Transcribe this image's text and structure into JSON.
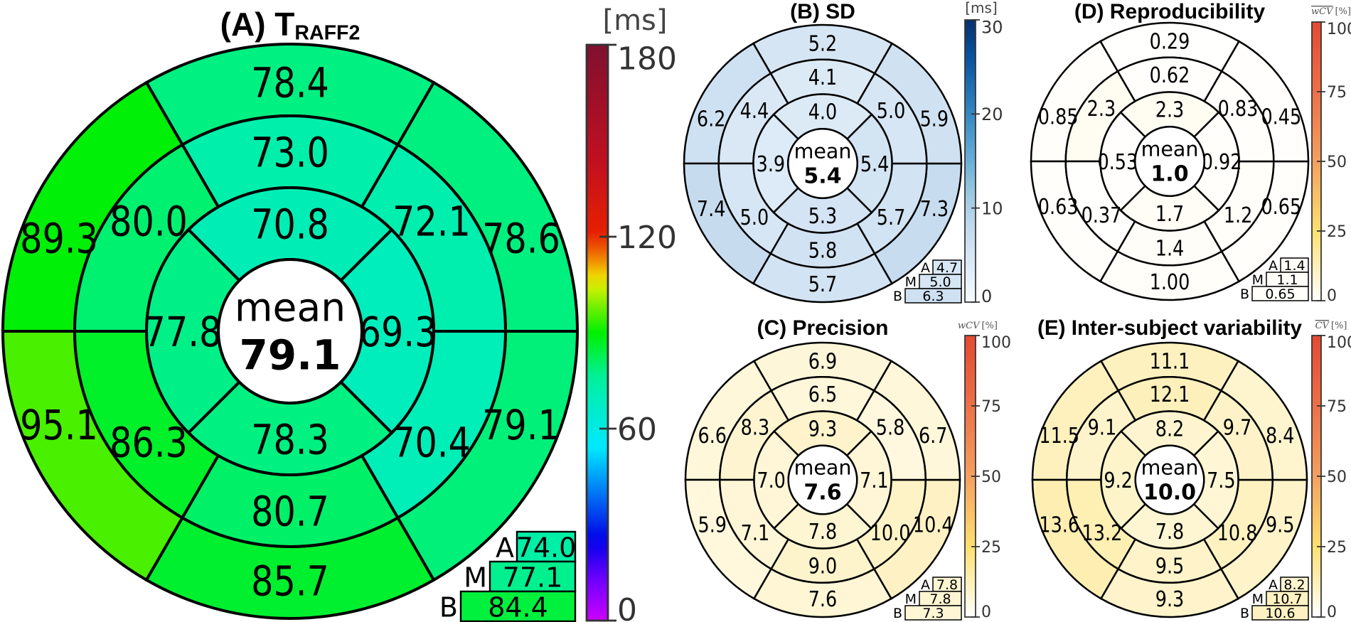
{
  "chart_data": [
    {
      "type": "bullseye",
      "id": "A",
      "title": "(A) T",
      "title_subscript": "RAFF2",
      "colorbar": {
        "unit": "[ms]",
        "unit_overline": "",
        "range": [
          0,
          180
        ],
        "ticks": [
          "0",
          "60",
          "120",
          "180"
        ],
        "colormap": "jet"
      },
      "segment_order": "counterclockwise from top",
      "basal": [
        "78.4",
        "89.3",
        "95.1",
        "85.7",
        "79.1",
        "78.6"
      ],
      "mid": [
        "73.0",
        "80.0",
        "86.3",
        "80.7",
        "70.4",
        "72.1"
      ],
      "apical": [
        "70.8",
        "77.8",
        "78.3",
        "69.3"
      ],
      "mean_label": "mean",
      "mean": "79.1",
      "territories": [
        {
          "label": "A",
          "value": "74.0"
        },
        {
          "label": "M",
          "value": "77.1"
        },
        {
          "label": "B",
          "value": "84.4"
        }
      ]
    },
    {
      "type": "bullseye",
      "id": "B",
      "title": "(B) SD",
      "colorbar": {
        "unit": "[ms]",
        "unit_overline": "",
        "range": [
          0,
          30
        ],
        "ticks": [
          "0",
          "10",
          "20",
          "30"
        ],
        "colormap": "blues"
      },
      "basal": [
        "5.2",
        "6.2",
        "7.4",
        "5.7",
        "7.3",
        "5.9"
      ],
      "mid": [
        "4.1",
        "4.4",
        "5.0",
        "5.8",
        "5.7",
        "5.0"
      ],
      "apical": [
        "4.0",
        "3.9",
        "5.3",
        "5.4"
      ],
      "mean_label": "mean",
      "mean": "5.4",
      "territories": [
        {
          "label": "A",
          "value": "4.7"
        },
        {
          "label": "M",
          "value": "5.0"
        },
        {
          "label": "B",
          "value": "6.3"
        }
      ]
    },
    {
      "type": "bullseye",
      "id": "C",
      "title": "(C) Precision",
      "colorbar": {
        "unit": "[%]",
        "unit_symbol": "wCV",
        "unit_overline": "no",
        "range": [
          0,
          100
        ],
        "ticks": [
          "0",
          "25",
          "50",
          "75",
          "100"
        ],
        "colormap": "ylorrd"
      },
      "basal": [
        "6.9",
        "6.6",
        "5.9",
        "7.6",
        "10.4",
        "6.7"
      ],
      "mid": [
        "6.5",
        "8.3",
        "7.1",
        "9.0",
        "10.0",
        "5.8"
      ],
      "apical": [
        "9.3",
        "7.0",
        "7.8",
        "7.1"
      ],
      "mean_label": "mean",
      "mean": "7.6",
      "territories": [
        {
          "label": "A",
          "value": "7.8"
        },
        {
          "label": "M",
          "value": "7.8"
        },
        {
          "label": "B",
          "value": "7.3"
        }
      ]
    },
    {
      "type": "bullseye",
      "id": "D",
      "title": "(D) Reproducibility",
      "colorbar": {
        "unit": "[%]",
        "unit_symbol": "wCV",
        "unit_overline": "yes",
        "range": [
          0,
          100
        ],
        "ticks": [
          "0",
          "25",
          "50",
          "75",
          "100"
        ],
        "colormap": "ylorrd"
      },
      "basal": [
        "0.29",
        "0.85",
        "0.63",
        "1.00",
        "0.65",
        "0.45"
      ],
      "mid": [
        "0.62",
        "2.3",
        "0.37",
        "1.4",
        "1.2",
        "0.83"
      ],
      "apical": [
        "2.3",
        "0.53",
        "1.7",
        "0.92"
      ],
      "mean_label": "mean",
      "mean": "1.0",
      "territories": [
        {
          "label": "A",
          "value": "1.4"
        },
        {
          "label": "M",
          "value": "1.1"
        },
        {
          "label": "B",
          "value": "0.65"
        }
      ]
    },
    {
      "type": "bullseye",
      "id": "E",
      "title": "(E) Inter-subject variability",
      "colorbar": {
        "unit": "[%]",
        "unit_symbol": "CV",
        "unit_overline": "yes",
        "range": [
          0,
          100
        ],
        "ticks": [
          "0",
          "25",
          "50",
          "75",
          "100"
        ],
        "colormap": "ylorrd"
      },
      "basal": [
        "11.1",
        "11.5",
        "13.6",
        "9.3",
        "9.5",
        "8.4"
      ],
      "mid": [
        "12.1",
        "9.1",
        "13.2",
        "9.5",
        "10.8",
        "9.7"
      ],
      "apical": [
        "8.2",
        "9.2",
        "7.8",
        "7.5"
      ],
      "mean_label": "mean",
      "mean": "10.0",
      "territories": [
        {
          "label": "A",
          "value": "8.2"
        },
        {
          "label": "M",
          "value": "10.7"
        },
        {
          "label": "B",
          "value": "10.6"
        }
      ]
    }
  ],
  "colormaps": {
    "jet": [
      "#cc00ff",
      "#7000ff",
      "#0000e8",
      "#00e8ff",
      "#00f0a0",
      "#00f000",
      "#80f000",
      "#f0f000",
      "#f08000",
      "#e82000",
      "#c01020",
      "#801030"
    ],
    "jet_positions": [
      0,
      0.07,
      0.14,
      0.3,
      0.42,
      0.5,
      0.55,
      0.59,
      0.63,
      0.67,
      0.8,
      1
    ],
    "blues": [
      "#f7fbff",
      "#deebf7",
      "#c6dbef",
      "#9ecae1",
      "#6baed6",
      "#4292c6",
      "#2171b5",
      "#08519c",
      "#08306b"
    ],
    "blues_positions": [
      0,
      0.125,
      0.25,
      0.375,
      0.5,
      0.625,
      0.75,
      0.875,
      1
    ],
    "ylorrd": [
      "#ffffff",
      "#fde070",
      "#f4a060",
      "#ec7048",
      "#e34a33"
    ],
    "ylorrd_positions": [
      0,
      0.25,
      0.5,
      0.75,
      1
    ]
  }
}
